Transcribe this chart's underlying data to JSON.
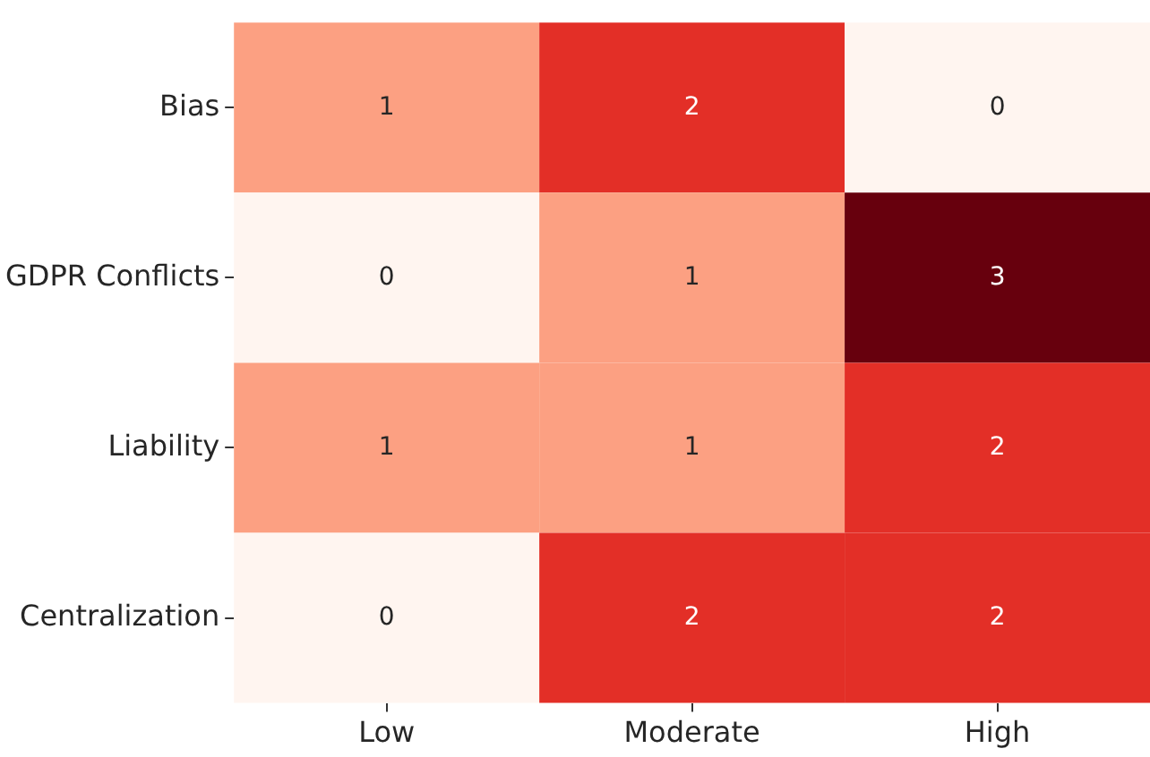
{
  "chart_data": {
    "type": "heatmap",
    "categories": [
      "Low",
      "Moderate",
      "High"
    ],
    "y_categories": [
      "Bias",
      "GDPR Conflicts",
      "Liability",
      "Centralization"
    ],
    "cells": [
      [
        1,
        2,
        0
      ],
      [
        0,
        1,
        3
      ],
      [
        1,
        1,
        2
      ],
      [
        0,
        2,
        2
      ]
    ],
    "data_labels": true
  }
}
